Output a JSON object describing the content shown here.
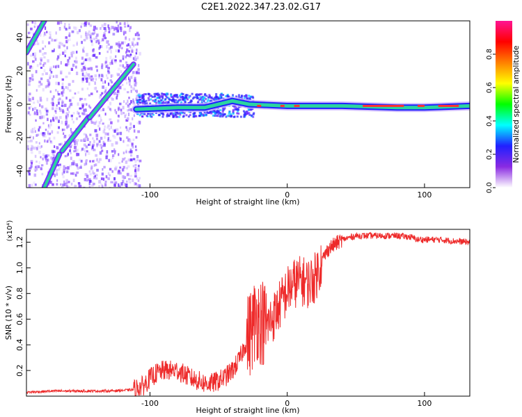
{
  "title": "C2E1.2022.347.23.02.G17",
  "colors": {
    "snr_line": "#ee2a2a",
    "track": "#2ad4a0",
    "scatter": "#7a2cff",
    "frame": "#000000"
  },
  "chart_data": [
    {
      "type": "heatmap",
      "xlabel": "Height of straight line (km)",
      "ylabel": "Frequency (Hz)",
      "xlim": [
        -190,
        133
      ],
      "ylim": [
        -50,
        50
      ],
      "x_ticks": [
        -100,
        0,
        100
      ],
      "y_ticks": [
        -40,
        -20,
        0,
        20,
        40
      ],
      "grid": false,
      "colorbar": {
        "label": "Normalized spectral amplitude",
        "range": [
          0.0,
          1.0
        ],
        "ticks": [
          "0.0",
          "0.2",
          "0.4",
          "0.6",
          "0.8"
        ],
        "colors": [
          "#ffffff",
          "#8a2be2",
          "#2020ff",
          "#00ffff",
          "#00ff00",
          "#ffff00",
          "#ff8000",
          "#ff0000",
          "#ff1493"
        ]
      },
      "tracks": [
        {
          "x": [
            -190,
            -177
          ],
          "y": [
            31,
            50
          ]
        },
        {
          "x": [
            -177,
            -166
          ],
          "y": [
            -50,
            -30
          ]
        },
        {
          "x": [
            -164,
            -145
          ],
          "y": [
            -28,
            -8
          ]
        },
        {
          "x": [
            -144,
            -112
          ],
          "y": [
            -8,
            24
          ]
        },
        {
          "x": [
            -110,
            -80,
            -60,
            -40,
            -28,
            0,
            40,
            80,
            100,
            133
          ],
          "y": [
            -3,
            -2,
            -2,
            2,
            0,
            -1,
            -1,
            -2,
            -2,
            -1
          ]
        }
      ]
    },
    {
      "type": "line",
      "xlabel": "Height of straight line (km)",
      "ylabel": "SNR (10 * v/v)",
      "y_multiplier": "(x10⁴)",
      "xlim": [
        -190,
        133
      ],
      "ylim": [
        0.0,
        1.3
      ],
      "x_ticks": [
        -100,
        0,
        100
      ],
      "y_ticks": [
        "0.2",
        "0.4",
        "0.6",
        "0.8",
        "1.0",
        "1.2"
      ],
      "grid": false,
      "series": [
        {
          "x": [
            -190,
            -170,
            -150,
            -130,
            -112,
            -105,
            -100,
            -95,
            -90,
            -85,
            -80,
            -75,
            -70,
            -65,
            -60,
            -55,
            -50,
            -45,
            -40,
            -35,
            -30,
            -25,
            -22,
            -20,
            -18,
            -15,
            -10,
            -5,
            0,
            5,
            10,
            15,
            20,
            25,
            30,
            40,
            50,
            60,
            70,
            80,
            90,
            95,
            100,
            110,
            120,
            133
          ],
          "y": [
            0.03,
            0.04,
            0.04,
            0.04,
            0.05,
            0.08,
            0.14,
            0.18,
            0.2,
            0.2,
            0.2,
            0.17,
            0.14,
            0.12,
            0.1,
            0.1,
            0.12,
            0.15,
            0.2,
            0.28,
            0.42,
            0.55,
            0.62,
            0.6,
            0.58,
            0.55,
            0.62,
            0.72,
            0.82,
            0.88,
            0.9,
            0.88,
            0.92,
            1.05,
            1.15,
            1.22,
            1.25,
            1.25,
            1.25,
            1.25,
            1.24,
            1.22,
            1.22,
            1.22,
            1.21,
            1.2
          ]
        }
      ]
    }
  ]
}
